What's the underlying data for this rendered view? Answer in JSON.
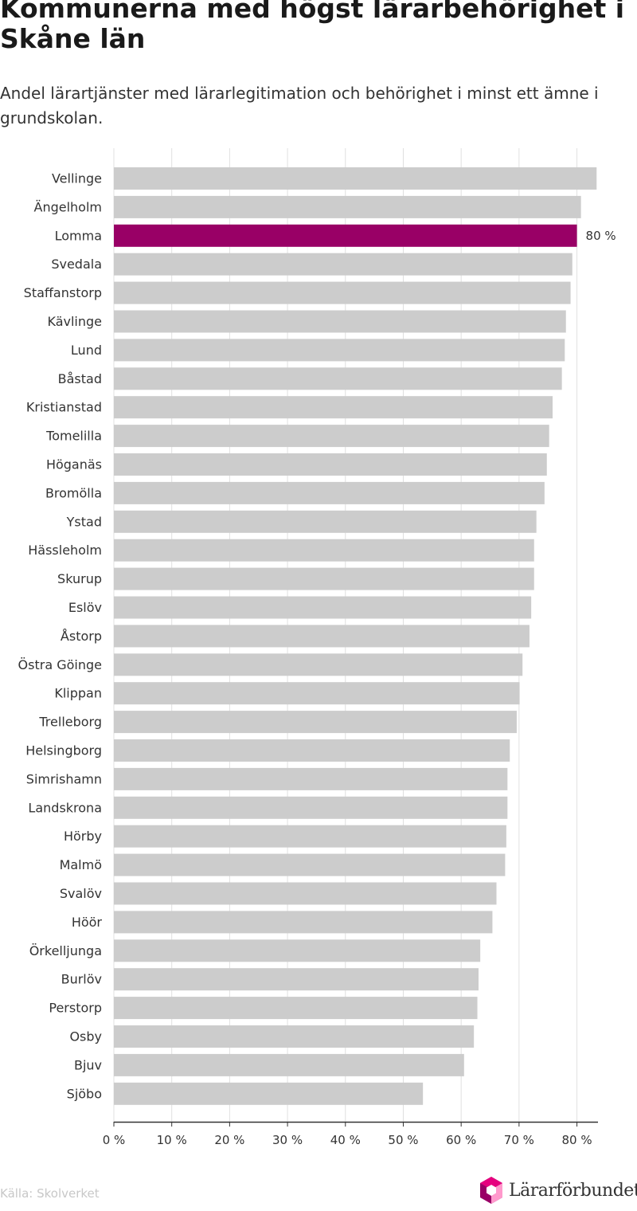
{
  "chart_data": {
    "type": "bar",
    "orientation": "horizontal",
    "title": "Kommunerna med högst lärarbehörighet i Skåne län",
    "subtitle": "Andel lärartjänster med lärarlegitimation och behörighet i minst ett ämne i grundskolan.",
    "categories": [
      "Vellinge",
      "Ängelholm",
      "Lomma",
      "Svedala",
      "Staffanstorp",
      "Kävlinge",
      "Lund",
      "Båstad",
      "Kristianstad",
      "Tomelilla",
      "Höganäs",
      "Bromölla",
      "Ystad",
      "Hässleholm",
      "Skurup",
      "Eslöv",
      "Åstorp",
      "Östra Göinge",
      "Klippan",
      "Trelleborg",
      "Helsingborg",
      "Simrishamn",
      "Landskrona",
      "Hörby",
      "Malmö",
      "Svalöv",
      "Höör",
      "Örkelljunga",
      "Burlöv",
      "Perstorp",
      "Osby",
      "Bjuv",
      "Sjöbo"
    ],
    "values": [
      83.4,
      80.7,
      80.0,
      79.2,
      78.9,
      78.1,
      77.9,
      77.4,
      75.8,
      75.2,
      74.8,
      74.4,
      73.0,
      72.6,
      72.6,
      72.1,
      71.8,
      70.6,
      70.1,
      69.6,
      68.4,
      68.0,
      68.0,
      67.8,
      67.6,
      66.1,
      65.4,
      63.3,
      63.0,
      62.8,
      62.2,
      60.5,
      53.4
    ],
    "highlight": {
      "category": "Lomma",
      "label": "80 %"
    },
    "xlim": [
      0,
      83.5
    ],
    "xticks": [
      0,
      10,
      20,
      30,
      40,
      50,
      60,
      70,
      80
    ],
    "xtick_labels": [
      "0 %",
      "10 %",
      "20 %",
      "30 %",
      "40 %",
      "50 %",
      "60 %",
      "70 %",
      "80 %"
    ],
    "grid": true,
    "colors": {
      "bar": "#cccccc",
      "highlight": "#990066",
      "grid": "#e0e0e0",
      "axis": "#333333"
    }
  },
  "footer": {
    "source": "Källa: Skolverket",
    "logo_text": "Lärarförbundet",
    "logo_icon": "hexagon-logo-icon",
    "logo_colors": [
      "#e6007e",
      "#990066",
      "#ff99cc",
      "#ffffff"
    ]
  }
}
